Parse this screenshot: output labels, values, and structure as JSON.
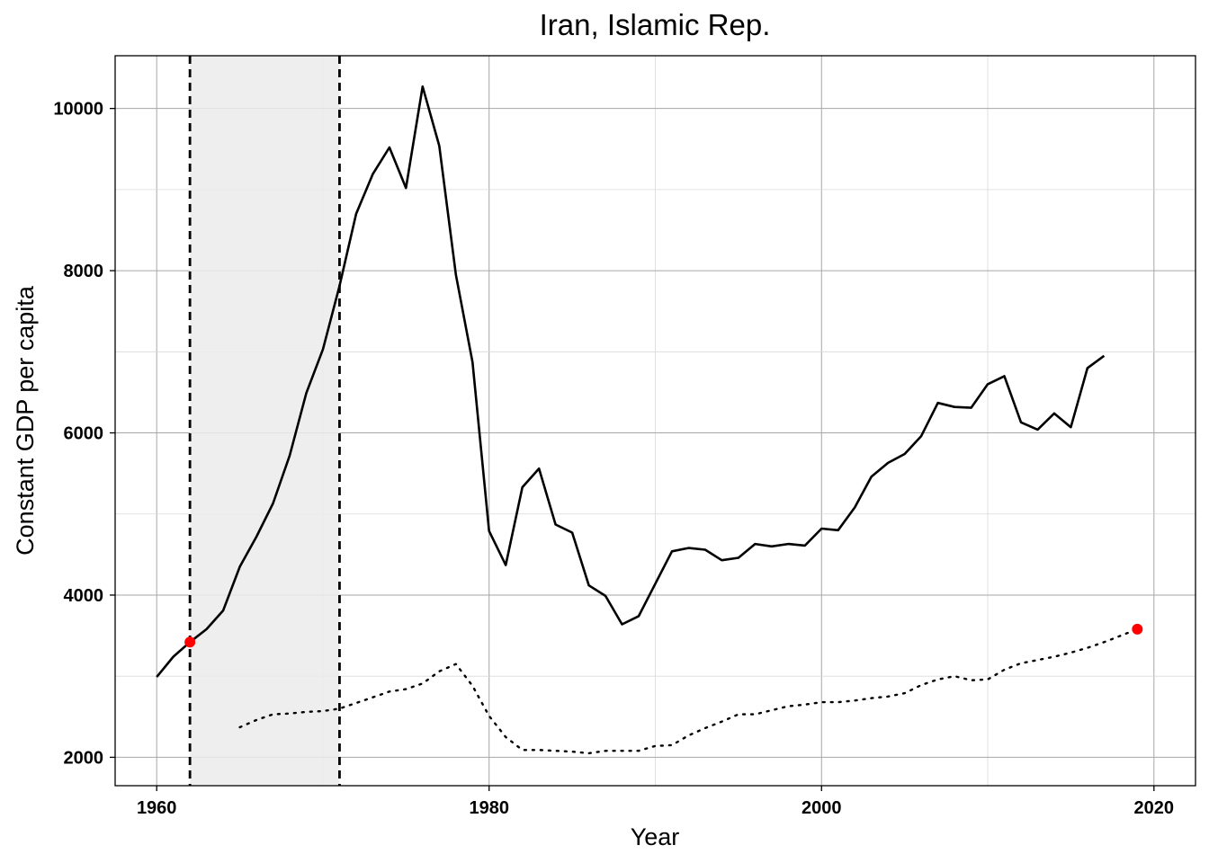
{
  "chart_data": {
    "type": "line",
    "title": "Iran, Islamic Rep.",
    "xlabel": "Year",
    "ylabel": "Constant GDP per capita",
    "xlim": [
      1957.5,
      2022.5
    ],
    "ylim": [
      1650,
      10650
    ],
    "x_ticks": [
      1960,
      1980,
      2000,
      2020
    ],
    "y_ticks": [
      2000,
      4000,
      6000,
      8000,
      10000
    ],
    "grid": true,
    "legend": "none",
    "shaded_region": {
      "from": 1962,
      "to": 1971,
      "color": "#ebebeb"
    },
    "vertical_lines": [
      1962,
      1971
    ],
    "series": [
      {
        "style": "solid",
        "color": "#000000",
        "x": [
          1960,
          1961,
          1962,
          1963,
          1964,
          1965,
          1966,
          1967,
          1968,
          1969,
          1970,
          1971,
          1972,
          1973,
          1974,
          1975,
          1976,
          1977,
          1978,
          1979,
          1980,
          1981,
          1982,
          1983,
          1984,
          1985,
          1986,
          1987,
          1988,
          1989,
          1990,
          1991,
          1992,
          1993,
          1994,
          1995,
          1996,
          1997,
          1998,
          1999,
          2000,
          2001,
          2002,
          2003,
          2004,
          2005,
          2006,
          2007,
          2008,
          2009,
          2010,
          2011,
          2012,
          2013,
          2014,
          2015,
          2016,
          2017
        ],
        "values": [
          2990,
          3240,
          3420,
          3580,
          3810,
          4350,
          4720,
          5130,
          5720,
          6490,
          7030,
          7810,
          8700,
          9190,
          9520,
          9020,
          10270,
          9540,
          7950,
          6870,
          4790,
          4370,
          5330,
          5560,
          4870,
          4770,
          4120,
          3990,
          3640,
          3740,
          4140,
          4540,
          4580,
          4560,
          4430,
          4460,
          4630,
          4600,
          4630,
          4610,
          4820,
          4800,
          5080,
          5460,
          5630,
          5740,
          5960,
          6370,
          6320,
          6310,
          6600,
          6700,
          6130,
          6040,
          6240,
          6070,
          6800,
          6950
        ]
      },
      {
        "style": "dotted",
        "color": "#000000",
        "x": [
          1965,
          1966,
          1967,
          1968,
          1969,
          1970,
          1971,
          1972,
          1973,
          1974,
          1975,
          1976,
          1977,
          1978,
          1979,
          1980,
          1981,
          1982,
          1983,
          1984,
          1985,
          1986,
          1987,
          1988,
          1989,
          1990,
          1991,
          1992,
          1993,
          1994,
          1995,
          1996,
          1997,
          1998,
          1999,
          2000,
          2001,
          2002,
          2003,
          2004,
          2005,
          2006,
          2007,
          2008,
          2009,
          2010,
          2011,
          2012,
          2013,
          2014,
          2015,
          2016,
          2017,
          2018,
          2019
        ],
        "values": [
          2370,
          2460,
          2530,
          2540,
          2560,
          2570,
          2600,
          2670,
          2740,
          2810,
          2840,
          2910,
          3060,
          3150,
          2880,
          2510,
          2250,
          2090,
          2090,
          2080,
          2070,
          2050,
          2080,
          2080,
          2080,
          2140,
          2150,
          2270,
          2360,
          2440,
          2530,
          2530,
          2580,
          2630,
          2650,
          2680,
          2680,
          2700,
          2730,
          2750,
          2790,
          2890,
          2960,
          3000,
          2950,
          2960,
          3080,
          3160,
          3200,
          3240,
          3290,
          3350,
          3420,
          3500,
          3580
        ]
      }
    ],
    "highlight_points": [
      {
        "x": 1962,
        "y": 3420,
        "color": "#ff0000"
      },
      {
        "x": 2019,
        "y": 3580,
        "color": "#ff0000"
      }
    ]
  }
}
